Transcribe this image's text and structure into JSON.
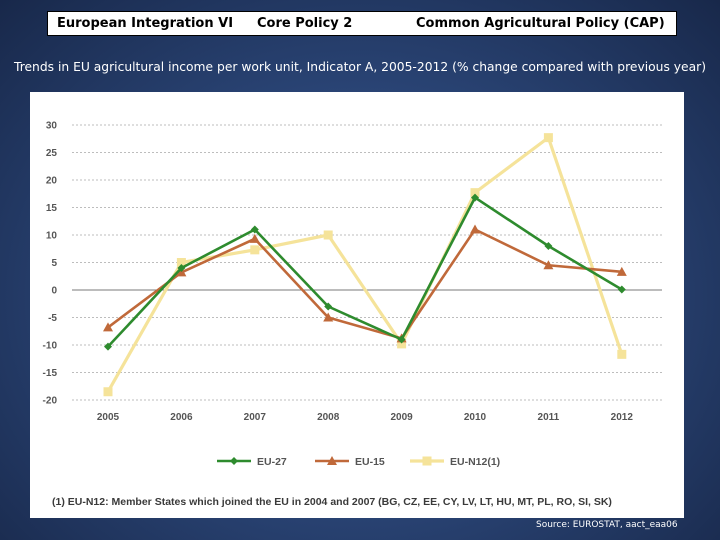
{
  "header": {
    "course": "European Integration  VI",
    "policy": "Core  Policy  2",
    "topic": "Common Agricultural Policy (CAP)"
  },
  "subtitle": "Trends in EU agricultural income per work unit, Indicator A, 2005-2012 (% change compared with previous year)",
  "chart_data": {
    "type": "line",
    "categories": [
      "2005",
      "2006",
      "2007",
      "2008",
      "2009",
      "2010",
      "2011",
      "2012"
    ],
    "ylim": [
      -20,
      30
    ],
    "yticks": [
      30,
      25,
      20,
      15,
      10,
      5,
      0,
      -5,
      -10,
      -15,
      -20
    ],
    "grid": true,
    "legend_position": "bottom",
    "series": [
      {
        "name": "EU-27",
        "color": "#2e8b2e",
        "marker": "diamond",
        "values": [
          -10.3,
          4.0,
          11.0,
          -3.0,
          -9.0,
          16.8,
          8.0,
          0.1
        ]
      },
      {
        "name": "EU-15",
        "color": "#c0693a",
        "marker": "triangle",
        "values": [
          -6.8,
          3.2,
          9.3,
          -5.0,
          -8.8,
          11.0,
          4.5,
          3.3
        ]
      },
      {
        "name": "EU-N12(1)",
        "color": "#f5e39a",
        "marker": "square",
        "values": [
          -18.5,
          5.0,
          7.3,
          10.0,
          -9.8,
          17.7,
          27.7,
          -11.7
        ]
      }
    ],
    "footnote": "(1) EU-N12: Member States which joined the EU in 2004 and 2007 (BG, CZ, EE, CY, LV, LT, HU, MT, PL, RO, SI, SK)"
  },
  "source": "Source: EUROSTAT, aact_eaa06"
}
